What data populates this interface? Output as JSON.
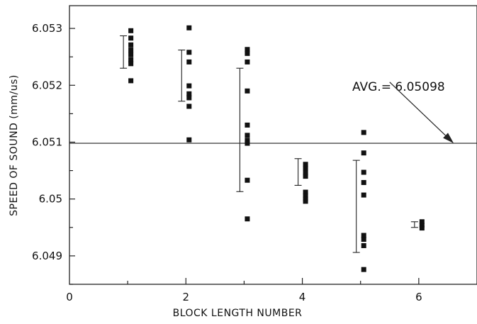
{
  "chart_data": {
    "type": "scatter",
    "xlabel": "BLOCK LENGTH NUMBER",
    "ylabel": "SPEED OF SOUND (mm/us)",
    "xlim": [
      0,
      7
    ],
    "ylim": [
      6.0485,
      6.0534
    ],
    "x_ticks": [
      0,
      2,
      4,
      6
    ],
    "x_tick_labels": [
      "0",
      "2",
      "4",
      "6"
    ],
    "y_ticks": [
      6.049,
      6.05,
      6.051,
      6.052,
      6.053
    ],
    "y_tick_labels": [
      "6.049",
      "6.05",
      "6.051",
      "6.052",
      "6.053"
    ],
    "grid": false,
    "reference_line": {
      "y": 6.05098
    },
    "annotation": {
      "text": "AVG.= 6.05098",
      "x": 5.5,
      "y": 6.05213,
      "arrow_to": [
        6.6,
        6.05098
      ]
    },
    "points": [
      {
        "x": 1,
        "y": 6.05296
      },
      {
        "x": 1,
        "y": 6.05283
      },
      {
        "x": 1,
        "y": 6.05271
      },
      {
        "x": 1,
        "y": 6.05262
      },
      {
        "x": 1,
        "y": 6.05254
      },
      {
        "x": 1,
        "y": 6.05245
      },
      {
        "x": 1,
        "y": 6.05238
      },
      {
        "x": 1,
        "y": 6.05208
      },
      {
        "x": 2,
        "y": 6.05301
      },
      {
        "x": 2,
        "y": 6.05258
      },
      {
        "x": 2,
        "y": 6.05241
      },
      {
        "x": 2,
        "y": 6.05199
      },
      {
        "x": 2,
        "y": 6.05185
      },
      {
        "x": 2,
        "y": 6.05178
      },
      {
        "x": 2,
        "y": 6.05163
      },
      {
        "x": 2,
        "y": 6.05104
      },
      {
        "x": 3,
        "y": 6.05263
      },
      {
        "x": 3,
        "y": 6.05256
      },
      {
        "x": 3,
        "y": 6.05241
      },
      {
        "x": 3,
        "y": 6.0519
      },
      {
        "x": 3,
        "y": 6.0513
      },
      {
        "x": 3,
        "y": 6.05112
      },
      {
        "x": 3,
        "y": 6.05103
      },
      {
        "x": 3,
        "y": 6.05098
      },
      {
        "x": 3,
        "y": 6.05033
      },
      {
        "x": 3,
        "y": 6.04965
      },
      {
        "x": 4,
        "y": 6.05061
      },
      {
        "x": 4,
        "y": 6.05054
      },
      {
        "x": 4,
        "y": 6.05046
      },
      {
        "x": 4,
        "y": 6.0504
      },
      {
        "x": 4,
        "y": 6.05012
      },
      {
        "x": 4,
        "y": 6.05006
      },
      {
        "x": 4,
        "y": 6.05
      },
      {
        "x": 4,
        "y": 6.04996
      },
      {
        "x": 5,
        "y": 6.05117
      },
      {
        "x": 5,
        "y": 6.05081
      },
      {
        "x": 5,
        "y": 6.05047
      },
      {
        "x": 5,
        "y": 6.05029
      },
      {
        "x": 5,
        "y": 6.05007
      },
      {
        "x": 5,
        "y": 6.04936
      },
      {
        "x": 5,
        "y": 6.04929
      },
      {
        "x": 5,
        "y": 6.04918
      },
      {
        "x": 5,
        "y": 6.04876
      },
      {
        "x": 6,
        "y": 6.0496
      },
      {
        "x": 6,
        "y": 6.04954
      },
      {
        "x": 6,
        "y": 6.04949
      }
    ],
    "error_bars": [
      {
        "x": 1,
        "low": 6.0523,
        "high": 6.05287
      },
      {
        "x": 2,
        "low": 6.05172,
        "high": 6.05262
      },
      {
        "x": 3,
        "low": 6.05013,
        "high": 6.0523
      },
      {
        "x": 4,
        "low": 6.05024,
        "high": 6.05071
      },
      {
        "x": 5,
        "low": 6.04906,
        "high": 6.05068
      },
      {
        "x": 6,
        "low": 6.0495,
        "high": 6.0496
      }
    ]
  }
}
